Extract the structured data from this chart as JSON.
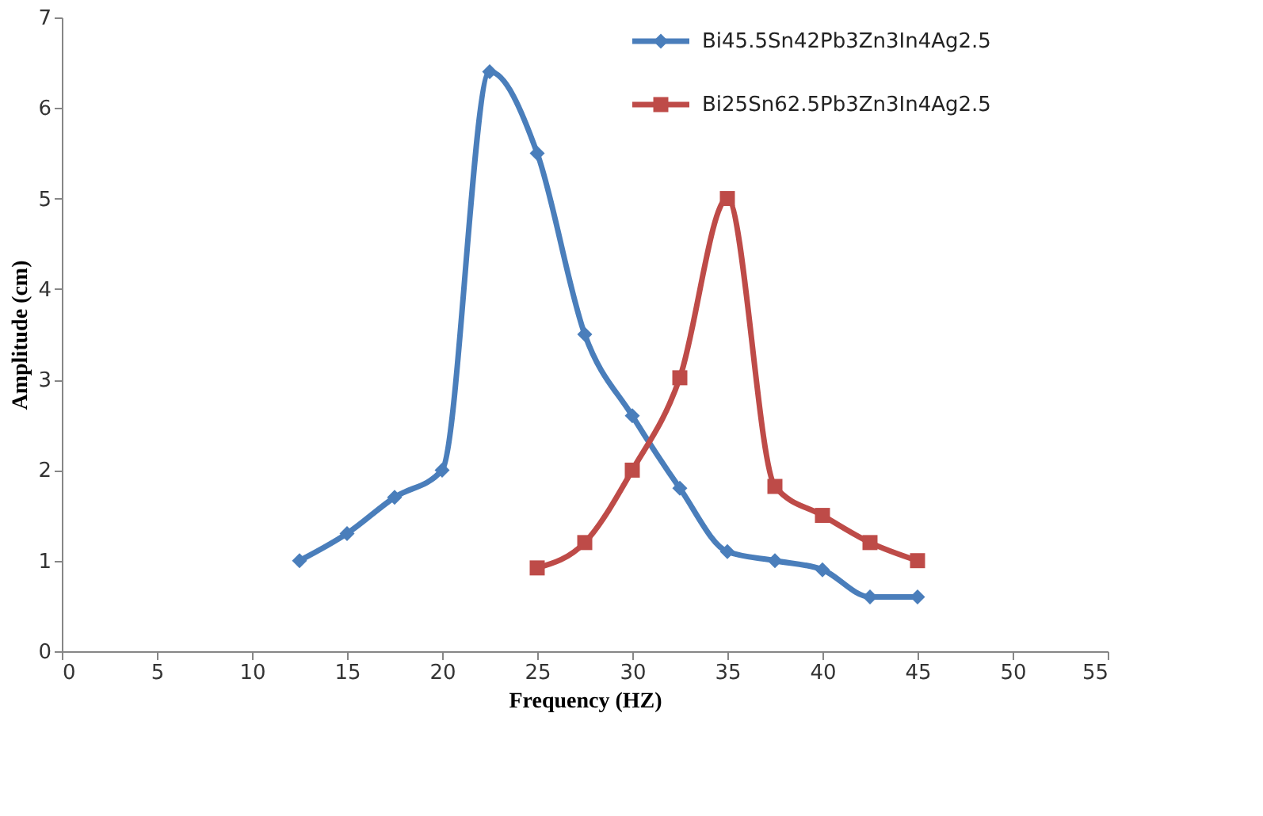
{
  "chart_data": {
    "type": "line",
    "xlabel": "Frequency  (HZ)",
    "ylabel": "Amplitude  (cm)",
    "xlim": [
      0,
      55
    ],
    "xticks": [
      0,
      5,
      10,
      15,
      20,
      25,
      30,
      35,
      40,
      45,
      50,
      55
    ],
    "ylim": [
      0,
      7
    ],
    "yticks": [
      0,
      1,
      2,
      3,
      4,
      5,
      6,
      7
    ],
    "grid": false,
    "legend": "top right",
    "line_style": "solid",
    "series": [
      {
        "name": "Bi45.5Sn42Pb3Zn3In4Ag2.5",
        "color": "#4a7ebb",
        "marker": "diamond",
        "x": [
          12.5,
          15,
          17.5,
          20,
          22.5,
          25,
          27.5,
          30,
          32.5,
          35,
          37.5,
          40,
          42.5,
          45
        ],
        "values": [
          1.0,
          1.3,
          1.7,
          2.0,
          6.4,
          5.5,
          3.5,
          2.6,
          1.8,
          1.1,
          1.0,
          0.9,
          0.6,
          0.6
        ]
      },
      {
        "name": "Bi25Sn62.5Pb3Zn3In4Ag2.5",
        "color": "#be4b48",
        "marker": "square",
        "x": [
          25,
          27.5,
          30,
          32.5,
          35,
          37.5,
          40,
          42.5,
          45
        ],
        "values": [
          0.92,
          1.2,
          2.0,
          3.02,
          5.0,
          1.82,
          1.5,
          1.2,
          1.0
        ]
      }
    ]
  }
}
